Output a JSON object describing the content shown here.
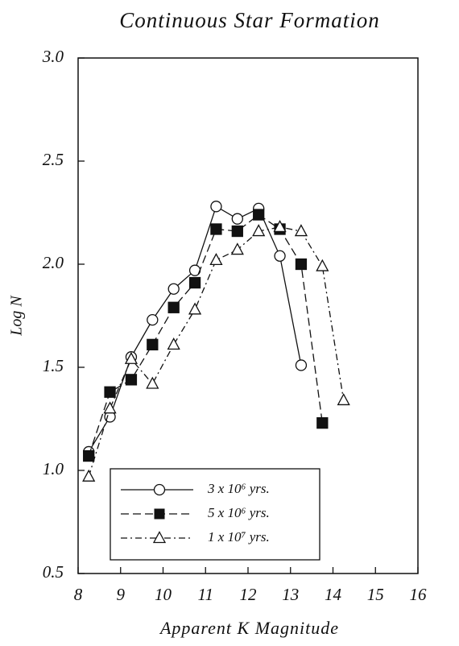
{
  "chart_data": {
    "type": "line",
    "title": "Continuous Star Formation",
    "x_label": "Apparent K Magnitude",
    "y_label": "Log N",
    "xlim": [
      8,
      16
    ],
    "ylim": [
      0.5,
      3.0
    ],
    "xticks": [
      8,
      9,
      10,
      11,
      12,
      13,
      14,
      15,
      16
    ],
    "yticks": [
      {
        "value": 0.5,
        "label": "0.5"
      },
      {
        "value": 1.0,
        "label": "1.0"
      },
      {
        "value": 1.5,
        "label": "1.5"
      },
      {
        "value": 2.0,
        "label": "2.0"
      },
      {
        "value": 2.5,
        "label": "2.5"
      },
      {
        "value": 3.0,
        "label": "3.0"
      }
    ],
    "series": [
      {
        "name": "3 x 10⁶ yrs.",
        "color": "#111111",
        "marker": "circle",
        "line_style": "solid",
        "x": [
          8.25,
          8.75,
          9.25,
          9.75,
          10.25,
          10.75,
          11.25,
          11.75,
          12.25,
          12.75,
          13.25
        ],
        "values": [
          1.09,
          1.26,
          1.55,
          1.73,
          1.88,
          1.97,
          2.28,
          2.22,
          2.27,
          2.04,
          1.51
        ]
      },
      {
        "name": "5 x 10⁶ yrs.",
        "color": "#111111",
        "marker": "square",
        "line_style": "dashed",
        "x": [
          8.25,
          8.75,
          9.25,
          9.75,
          10.25,
          10.75,
          11.25,
          11.75,
          12.25,
          12.75,
          13.25,
          13.75
        ],
        "values": [
          1.07,
          1.38,
          1.44,
          1.61,
          1.79,
          1.91,
          2.17,
          2.16,
          2.24,
          2.17,
          2.0,
          1.23
        ]
      },
      {
        "name": "1 x 10⁷ yrs.",
        "color": "#111111",
        "marker": "triangle",
        "line_style": "dashdot",
        "x": [
          8.25,
          8.75,
          9.25,
          9.75,
          10.25,
          10.75,
          11.25,
          11.75,
          12.25,
          12.75,
          13.25,
          13.75,
          14.25
        ],
        "values": [
          0.97,
          1.3,
          1.54,
          1.42,
          1.61,
          1.78,
          2.02,
          2.07,
          2.16,
          2.18,
          2.16,
          1.99,
          1.34
        ]
      }
    ]
  }
}
